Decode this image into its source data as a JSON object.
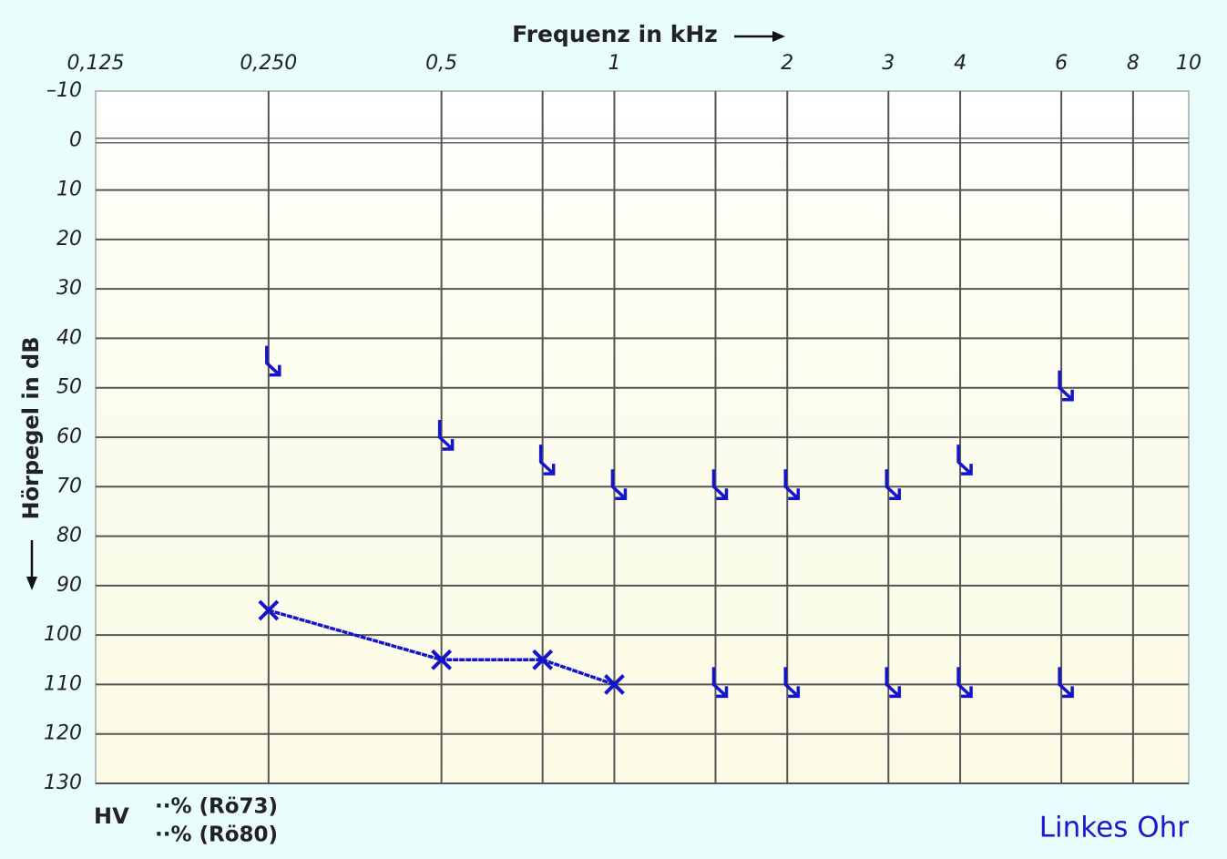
{
  "chart_data": {
    "type": "audiogram",
    "title": "Frequenz in kHz",
    "y_label": "Hörpegel in dB",
    "annotations": [
      "HV",
      "··% (Rö73)",
      "··% (Rö80)"
    ],
    "ear": "Linkes Ohr",
    "x_scale": "log",
    "xlim": [
      0.125,
      10
    ],
    "xticks": [
      {
        "value": 0.125,
        "label": "0,125"
      },
      {
        "value": 0.25,
        "label": "0,250"
      },
      {
        "value": 0.5,
        "label": "0,5"
      },
      {
        "value": 0.75,
        "label": null
      },
      1,
      {
        "value": 1.5,
        "label": null
      },
      2,
      3,
      4,
      6,
      8,
      10
    ],
    "ylim": [
      -10,
      130
    ],
    "yticks": [
      {
        "value": -10,
        "label": "–10"
      },
      0,
      10,
      20,
      30,
      40,
      50,
      60,
      70,
      80,
      90,
      100,
      110,
      120,
      130
    ],
    "y_inverted": true,
    "grid": true,
    "series": [
      {
        "color": "#1414cc",
        "marker": "x",
        "line": true,
        "x": [
          0.25,
          0.5,
          0.75,
          1
        ],
        "values": [
          95,
          105,
          105,
          110
        ]
      },
      {
        "color": "#1414cc",
        "marker": "arrow",
        "line": false,
        "x": [
          1.5,
          2,
          3,
          4,
          6
        ],
        "values": [
          110,
          110,
          110,
          110,
          110
        ]
      },
      {
        "color": "#1414cc",
        "marker": "arrow",
        "line": false,
        "x": [
          0.25,
          0.5,
          0.75,
          1,
          1.5,
          2,
          3,
          4,
          6
        ],
        "values": [
          45,
          60,
          65,
          70,
          70,
          70,
          70,
          65,
          50
        ]
      }
    ]
  }
}
